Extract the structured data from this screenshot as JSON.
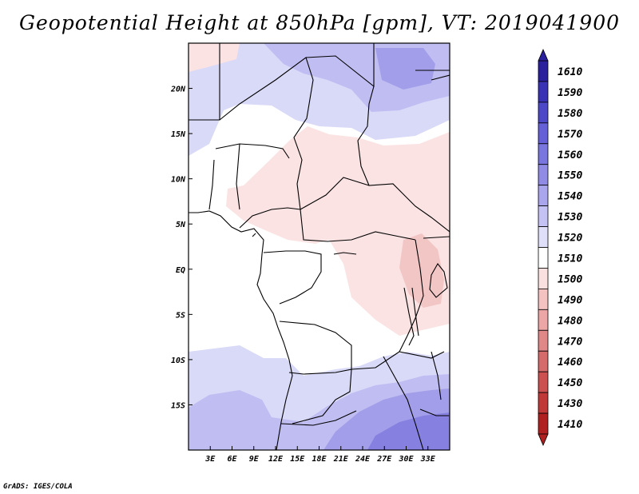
{
  "title": "Geopotential Height at 850hPa [gpm], VT: 2019041900",
  "credit": "GrADS: IGES/COLA",
  "map": {
    "variable": "Geopotential Height",
    "level": "850hPa",
    "units": "gpm",
    "valid_time": "2019041900",
    "lon_range": [
      0,
      36
    ],
    "lat_range": [
      -20,
      25
    ],
    "lat_ticks": [
      {
        "lat": 20,
        "label": "20N"
      },
      {
        "lat": 15,
        "label": "15N"
      },
      {
        "lat": 10,
        "label": "10N"
      },
      {
        "lat": 5,
        "label": "5N"
      },
      {
        "lat": 0,
        "label": "EQ"
      },
      {
        "lat": -5,
        "label": "5S"
      },
      {
        "lat": -10,
        "label": "10S"
      },
      {
        "lat": -15,
        "label": "15S"
      }
    ],
    "lon_ticks": [
      {
        "lon": 3,
        "label": "3E"
      },
      {
        "lon": 6,
        "label": "6E"
      },
      {
        "lon": 9,
        "label": "9E"
      },
      {
        "lon": 12,
        "label": "12E"
      },
      {
        "lon": 15,
        "label": "15E"
      },
      {
        "lon": 18,
        "label": "18E"
      },
      {
        "lon": 21,
        "label": "21E"
      },
      {
        "lon": 24,
        "label": "24E"
      },
      {
        "lon": 27,
        "label": "27E"
      },
      {
        "lon": 30,
        "label": "30E"
      },
      {
        "lon": 33,
        "label": "33E"
      }
    ]
  },
  "colorbar": {
    "levels": [
      "1610",
      "1590",
      "1580",
      "1570",
      "1560",
      "1550",
      "1540",
      "1530",
      "1520",
      "1510",
      "1500",
      "1490",
      "1480",
      "1470",
      "1460",
      "1450",
      "1430",
      "1410"
    ],
    "colors": [
      "#2a1f9c",
      "#3a32b4",
      "#4d48c8",
      "#6560d8",
      "#7a76e0",
      "#908ce6",
      "#a9a6ee",
      "#c4c2f4",
      "#e0dffa",
      "#ffffff",
      "#fbe0e0",
      "#f5c2c2",
      "#eca6a6",
      "#e08888",
      "#d66b6b",
      "#cc5050",
      "#c03838",
      "#b02020"
    ]
  },
  "colors": {
    "c1530": "#d9d9f8",
    "c1540": "#c0bdf2",
    "c1550": "#a29ee9",
    "c1560": "#8680e0",
    "c1510": "#ffffff",
    "c1500": "#fbe3e3",
    "c1490": "#f3c6c6"
  }
}
